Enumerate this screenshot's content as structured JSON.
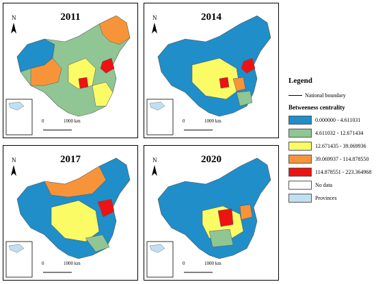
{
  "legend": {
    "title": "Legend",
    "national_boundary": "National boundary",
    "subtitle": "Betweeness centrality",
    "classes": [
      {
        "label": "0.000000 - 4.611031",
        "color": "#1f8ec9"
      },
      {
        "label": "4.611032 - 12.671434",
        "color": "#8fc694"
      },
      {
        "label": "12.671435 - 39.069936",
        "color": "#fbfb66"
      },
      {
        "label": "39.069937 - 114.878550",
        "color": "#f7943a"
      },
      {
        "label": "114.878551 - 223.364968",
        "color": "#ee1212"
      }
    ],
    "no_data": {
      "label": "No data",
      "color": "#ffffff"
    },
    "provinces": {
      "label": "Provinces",
      "color": "#bfe0f2"
    }
  },
  "panels": [
    {
      "year": "2011",
      "scale_start": "0",
      "scale_end": "1000 km",
      "dominant_class": 1,
      "center_class": 3,
      "hot_class": 4
    },
    {
      "year": "2014",
      "scale_start": "0",
      "scale_end": "1000 km",
      "dominant_class": 0,
      "center_class": 2,
      "hot_class": 4
    },
    {
      "year": "2017",
      "scale_start": "0",
      "scale_end": "1000 km",
      "dominant_class": 0,
      "center_class": 3,
      "hot_class": 4
    },
    {
      "year": "2020",
      "scale_start": "0",
      "scale_end": "1000 km",
      "dominant_class": 0,
      "center_class": 1,
      "hot_class": 4
    }
  ],
  "north_arrow_label": "N"
}
